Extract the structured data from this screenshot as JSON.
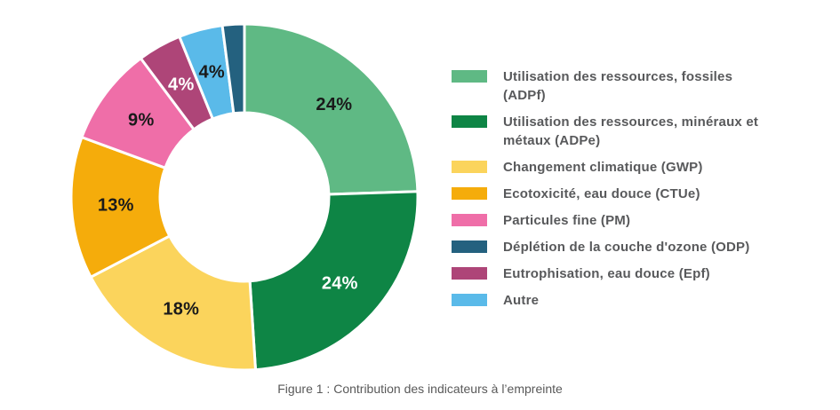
{
  "caption": "Figure 1 : Contribution des indicateurs à l’empreinte",
  "colors": {
    "background": "#FFFFFF",
    "legend_text": "#58595B",
    "caption_text": "#595959",
    "slice_divider": "#FFFFFF"
  },
  "chart_data": {
    "type": "pie",
    "subtype": "donut",
    "unit": "%",
    "legend_position": "right",
    "caption": "Figure 1 : Contribution des indicateurs à l’empreinte",
    "slices": [
      {
        "key": "adpf",
        "name": "Utilisation des ressources, fossiles (ADPf)",
        "value": 24,
        "label": "24%",
        "color": "#5FB984",
        "label_color": "#1A1A1A"
      },
      {
        "key": "adpe",
        "name": "Utilisation des ressources, minéraux et métaux (ADPe)",
        "value": 24,
        "label": "24%",
        "color": "#0E8545",
        "label_color": "#FFFFFF"
      },
      {
        "key": "gwp",
        "name": "Changement climatique (GWP)",
        "value": 18,
        "label": "18%",
        "color": "#FBD45C",
        "label_color": "#1A1A1A"
      },
      {
        "key": "ctue",
        "name": "Ecotoxicité, eau douce (CTUe)",
        "value": 13,
        "label": "13%",
        "color": "#F5AC0B",
        "label_color": "#1A1A1A"
      },
      {
        "key": "pm",
        "name": "Particules fine (PM)",
        "value": 9,
        "label": "9%",
        "color": "#EF6EA8",
        "label_color": "#1A1A1A"
      },
      {
        "key": "epf",
        "name": "Eutrophisation, eau douce (Epf)",
        "value": 4,
        "label": "4%",
        "color": "#AE4578",
        "label_color": "#FFFFFF"
      },
      {
        "key": "autre",
        "name": "Autre",
        "value": 4,
        "label": "4%",
        "color": "#5ABAE9",
        "label_color": "#1A1A1A"
      },
      {
        "key": "odp",
        "name": "Déplétion de la couche d'ozone (ODP)",
        "value": 2,
        "label": "",
        "color": "#24617F",
        "label_color": "#FFFFFF"
      }
    ]
  },
  "legend": {
    "items": [
      {
        "key": "adpf",
        "color": "#5FB984",
        "lines": [
          "Utilisation des ressources, fossiles",
          "(ADPf)"
        ]
      },
      {
        "key": "adpe",
        "color": "#0E8545",
        "lines": [
          "Utilisation des ressources, minéraux et",
          "métaux (ADPe)"
        ]
      },
      {
        "key": "gwp",
        "color": "#FBD45C",
        "lines": [
          "Changement climatique (GWP)"
        ]
      },
      {
        "key": "ctue",
        "color": "#F5AC0B",
        "lines": [
          "Ecotoxicité, eau douce (CTUe)"
        ]
      },
      {
        "key": "pm",
        "color": "#EF6EA8",
        "lines": [
          "Particules fine (PM)"
        ]
      },
      {
        "key": "odp",
        "color": "#24617F",
        "lines": [
          "Déplétion de la couche d'ozone (ODP)"
        ]
      },
      {
        "key": "epf",
        "color": "#AE4578",
        "lines": [
          "Eutrophisation, eau douce (Epf)"
        ]
      },
      {
        "key": "autre",
        "color": "#5ABAE9",
        "lines": [
          "Autre"
        ]
      }
    ]
  }
}
